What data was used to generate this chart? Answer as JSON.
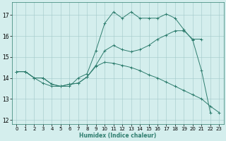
{
  "background_color": "#d4eeed",
  "grid_color": "#a0c8c8",
  "line_color": "#2e7d6e",
  "xlabel": "Humidex (Indice chaleur)",
  "xlim": [
    -0.5,
    23.5
  ],
  "ylim": [
    11.8,
    17.6
  ],
  "yticks": [
    12,
    13,
    14,
    15,
    16,
    17
  ],
  "xticks": [
    0,
    1,
    2,
    3,
    4,
    5,
    6,
    7,
    8,
    9,
    10,
    11,
    12,
    13,
    14,
    15,
    16,
    17,
    18,
    19,
    20,
    21,
    22,
    23
  ],
  "line1_x": [
    0,
    1,
    2,
    3,
    4,
    5,
    6,
    7,
    8,
    9,
    10,
    11,
    12,
    13,
    14,
    15,
    16,
    17,
    18,
    19,
    20,
    21,
    22
  ],
  "line1_y": [
    14.3,
    14.3,
    14.0,
    13.75,
    13.6,
    13.6,
    13.6,
    14.0,
    14.2,
    15.3,
    16.6,
    17.15,
    16.85,
    17.15,
    16.85,
    16.85,
    16.85,
    17.05,
    16.85,
    16.3,
    15.8,
    14.35,
    12.35
  ],
  "line2_x": [
    0,
    1,
    2,
    3,
    4,
    5,
    6,
    7,
    8,
    9,
    10,
    11,
    12,
    13,
    14,
    15,
    16,
    17,
    18,
    19,
    20,
    21
  ],
  "line2_y": [
    14.3,
    14.3,
    14.0,
    14.0,
    13.7,
    13.6,
    13.7,
    13.75,
    14.05,
    14.6,
    15.3,
    15.55,
    15.35,
    15.25,
    15.35,
    15.55,
    15.85,
    16.05,
    16.25,
    16.25,
    15.85,
    15.85
  ],
  "line3_x": [
    0,
    1,
    2,
    3,
    4,
    5,
    6,
    7,
    8,
    9,
    10,
    11,
    12,
    13,
    14,
    15,
    16,
    17,
    18,
    19,
    20,
    21,
    22,
    23
  ],
  "line3_y": [
    14.3,
    14.3,
    14.0,
    14.0,
    13.7,
    13.6,
    13.7,
    13.75,
    14.05,
    14.55,
    14.75,
    14.7,
    14.6,
    14.5,
    14.35,
    14.15,
    14.0,
    13.8,
    13.6,
    13.4,
    13.2,
    13.0,
    12.65,
    12.35
  ],
  "xlabel_color": "#2e7d6e",
  "xlabel_fontsize": 5.5,
  "tick_fontsize": 5.5,
  "linewidth": 0.7,
  "markersize": 2.5
}
